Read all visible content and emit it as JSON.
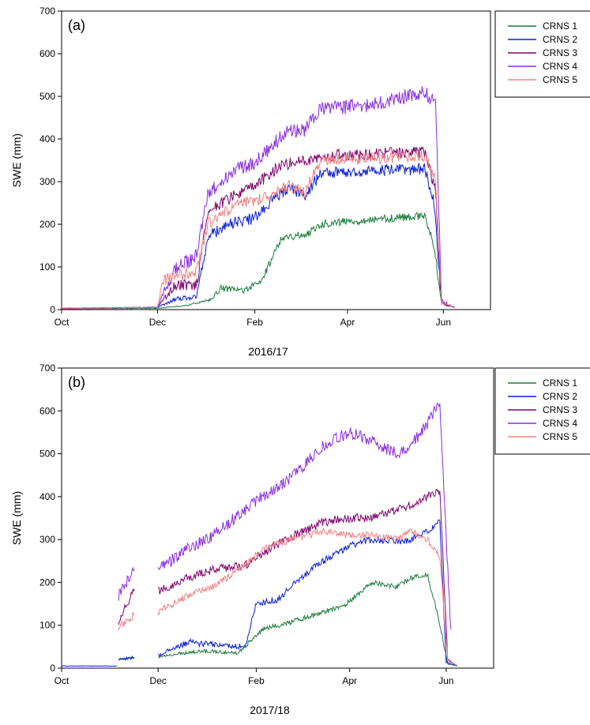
{
  "chart_data": [
    {
      "type": "line",
      "panel_label": "(a)",
      "xlabel": "2016/17",
      "ylabel": "SWE (mm)",
      "ylim": [
        0,
        700
      ],
      "yticks": [
        0,
        100,
        200,
        300,
        400,
        500,
        600,
        700
      ],
      "xticks": [
        "Oct",
        "Dec",
        "Feb",
        "Apr",
        "Jun"
      ],
      "legend_position": "outside-right",
      "series": [
        {
          "name": "CRNS 1",
          "color": "#1a7a3a",
          "noise": 9,
          "x": [
            "2016-10-01",
            "2016-12-01",
            "2016-12-20",
            "2017-01-05",
            "2017-01-10",
            "2017-01-25",
            "2017-02-05",
            "2017-02-18",
            "2017-03-05",
            "2017-03-15",
            "2017-03-25",
            "2017-04-15",
            "2017-05-01",
            "2017-05-20",
            "2017-05-26",
            "2017-05-31",
            "2017-06-08"
          ],
          "y": [
            2,
            3,
            10,
            25,
            50,
            45,
            65,
            170,
            175,
            200,
            205,
            210,
            215,
            220,
            150,
            15,
            5
          ]
        },
        {
          "name": "CRNS 2",
          "color": "#0a1ed8",
          "noise": 14,
          "x": [
            "2016-10-01",
            "2016-12-01",
            "2016-12-12",
            "2016-12-26",
            "2017-01-02",
            "2017-01-15",
            "2017-02-01",
            "2017-02-10",
            "2017-02-22",
            "2017-03-05",
            "2017-03-15",
            "2017-04-15",
            "2017-05-20",
            "2017-05-26",
            "2017-05-31",
            "2017-06-08"
          ],
          "y": [
            3,
            5,
            25,
            30,
            170,
            200,
            215,
            250,
            285,
            270,
            320,
            325,
            330,
            250,
            15,
            5
          ]
        },
        {
          "name": "CRNS 3",
          "color": "#800070",
          "noise": 14,
          "x": [
            "2016-10-01",
            "2016-12-01",
            "2016-12-12",
            "2016-12-26",
            "2017-01-02",
            "2017-01-15",
            "2017-02-01",
            "2017-02-18",
            "2017-03-05",
            "2017-03-15",
            "2017-04-15",
            "2017-05-20",
            "2017-05-27",
            "2017-05-31",
            "2017-06-08"
          ],
          "y": [
            3,
            5,
            55,
            60,
            230,
            260,
            290,
            340,
            350,
            360,
            365,
            370,
            280,
            15,
            5
          ]
        },
        {
          "name": "CRNS 4",
          "color": "#8a2be2",
          "noise": 17,
          "x": [
            "2016-10-01",
            "2016-12-01",
            "2016-12-12",
            "2016-12-26",
            "2017-01-02",
            "2017-01-20",
            "2017-02-01",
            "2017-02-22",
            "2017-03-05",
            "2017-03-15",
            "2017-04-15",
            "2017-05-20",
            "2017-05-27",
            "2017-05-31",
            "2017-06-08"
          ],
          "y": [
            3,
            5,
            95,
            125,
            270,
            330,
            345,
            420,
            420,
            470,
            480,
            510,
            480,
            20,
            5
          ]
        },
        {
          "name": "CRNS 5",
          "color": "#f08080",
          "noise": 14,
          "x": [
            "2016-10-01",
            "2016-12-01",
            "2016-12-05",
            "2016-12-26",
            "2017-01-02",
            "2017-01-20",
            "2017-02-01",
            "2017-02-22",
            "2017-03-05",
            "2017-03-15",
            "2017-04-15",
            "2017-05-20",
            "2017-05-27",
            "2017-05-31",
            "2017-06-08"
          ],
          "y": [
            3,
            5,
            70,
            90,
            200,
            245,
            255,
            290,
            275,
            350,
            355,
            360,
            300,
            15,
            5
          ]
        }
      ]
    },
    {
      "type": "line",
      "panel_label": "(b)",
      "xlabel": "2017/18",
      "ylabel": "SWE (mm)",
      "ylim": [
        0,
        700
      ],
      "yticks": [
        0,
        100,
        200,
        300,
        400,
        500,
        600,
        700
      ],
      "xticks": [
        "Oct",
        "Dec",
        "Feb",
        "Apr",
        "Jun"
      ],
      "legend_position": "outside-right",
      "series": [
        {
          "name": "CRNS 1",
          "color": "#1a7a3a",
          "noise": 6,
          "segments": [
            {
              "x": [
                "2017-11-06",
                "2017-11-16"
              ],
              "y": [
                20,
                25
              ]
            },
            {
              "x": [
                "2017-12-01",
                "2017-12-15",
                "2018-01-01",
                "2018-01-20",
                "2018-02-05",
                "2018-02-25",
                "2018-03-15",
                "2018-03-30",
                "2018-04-15",
                "2018-05-01",
                "2018-05-10",
                "2018-05-20",
                "2018-05-27",
                "2018-06-02",
                "2018-06-08"
              ],
              "y": [
                25,
                35,
                40,
                35,
                90,
                110,
                130,
                150,
                200,
                190,
                210,
                220,
                120,
                10,
                5
              ]
            }
          ]
        },
        {
          "name": "CRNS 2",
          "color": "#0a1ed8",
          "noise": 8,
          "segments": [
            {
              "x": [
                "2017-10-01",
                "2017-11-05"
              ],
              "y": [
                5,
                5
              ]
            },
            {
              "x": [
                "2017-11-06",
                "2017-11-16"
              ],
              "y": [
                20,
                25
              ]
            },
            {
              "x": [
                "2017-12-01",
                "2017-12-20",
                "2018-01-05",
                "2018-01-25",
                "2018-02-01",
                "2018-02-15",
                "2018-02-25",
                "2018-03-15",
                "2018-04-01",
                "2018-04-15",
                "2018-05-01",
                "2018-05-10",
                "2018-05-20",
                "2018-05-28",
                "2018-06-01",
                "2018-06-08"
              ],
              "y": [
                30,
                60,
                55,
                50,
                150,
                160,
                200,
                250,
                285,
                300,
                295,
                300,
                320,
                340,
                15,
                5
              ]
            }
          ]
        },
        {
          "name": "CRNS 3",
          "color": "#800070",
          "noise": 10,
          "segments": [
            {
              "x": [
                "2017-11-06",
                "2017-11-16"
              ],
              "y": [
                110,
                185
              ]
            },
            {
              "x": [
                "2017-12-01",
                "2017-12-20",
                "2018-01-05",
                "2018-01-25",
                "2018-02-10",
                "2018-02-25",
                "2018-03-15",
                "2018-04-01",
                "2018-04-15",
                "2018-05-01",
                "2018-05-10",
                "2018-05-20",
                "2018-05-28",
                "2018-06-02",
                "2018-06-08"
              ],
              "y": [
                180,
                210,
                230,
                240,
                280,
                310,
                340,
                350,
                350,
                370,
                380,
                400,
                410,
                20,
                5
              ]
            }
          ]
        },
        {
          "name": "CRNS 4",
          "color": "#8a2be2",
          "noise": 14,
          "segments": [
            {
              "x": [
                "2017-11-06",
                "2017-11-16"
              ],
              "y": [
                170,
                230
              ]
            },
            {
              "x": [
                "2017-12-01",
                "2017-12-20",
                "2018-01-05",
                "2018-01-25",
                "2018-02-05",
                "2018-02-25",
                "2018-03-15",
                "2018-04-01",
                "2018-04-15",
                "2018-05-01",
                "2018-05-10",
                "2018-05-20",
                "2018-05-28",
                "2018-06-01",
                "2018-06-04"
              ],
              "y": [
                230,
                280,
                310,
                370,
                400,
                450,
                520,
                550,
                530,
                500,
                520,
                570,
                620,
                300,
                90
              ]
            }
          ]
        },
        {
          "name": "CRNS 5",
          "color": "#f08080",
          "noise": 8,
          "segments": [
            {
              "x": [
                "2017-11-06",
                "2017-11-16"
              ],
              "y": [
                95,
                125
              ]
            },
            {
              "x": [
                "2017-12-01",
                "2017-12-20",
                "2018-01-05",
                "2018-01-25",
                "2018-02-05",
                "2018-02-25",
                "2018-03-15",
                "2018-04-01",
                "2018-04-15",
                "2018-05-01",
                "2018-05-10",
                "2018-05-20",
                "2018-05-28",
                "2018-06-02",
                "2018-06-08"
              ],
              "y": [
                130,
                170,
                190,
                240,
                280,
                300,
                320,
                310,
                310,
                300,
                320,
                300,
                260,
                20,
                5
              ]
            }
          ]
        }
      ]
    }
  ]
}
